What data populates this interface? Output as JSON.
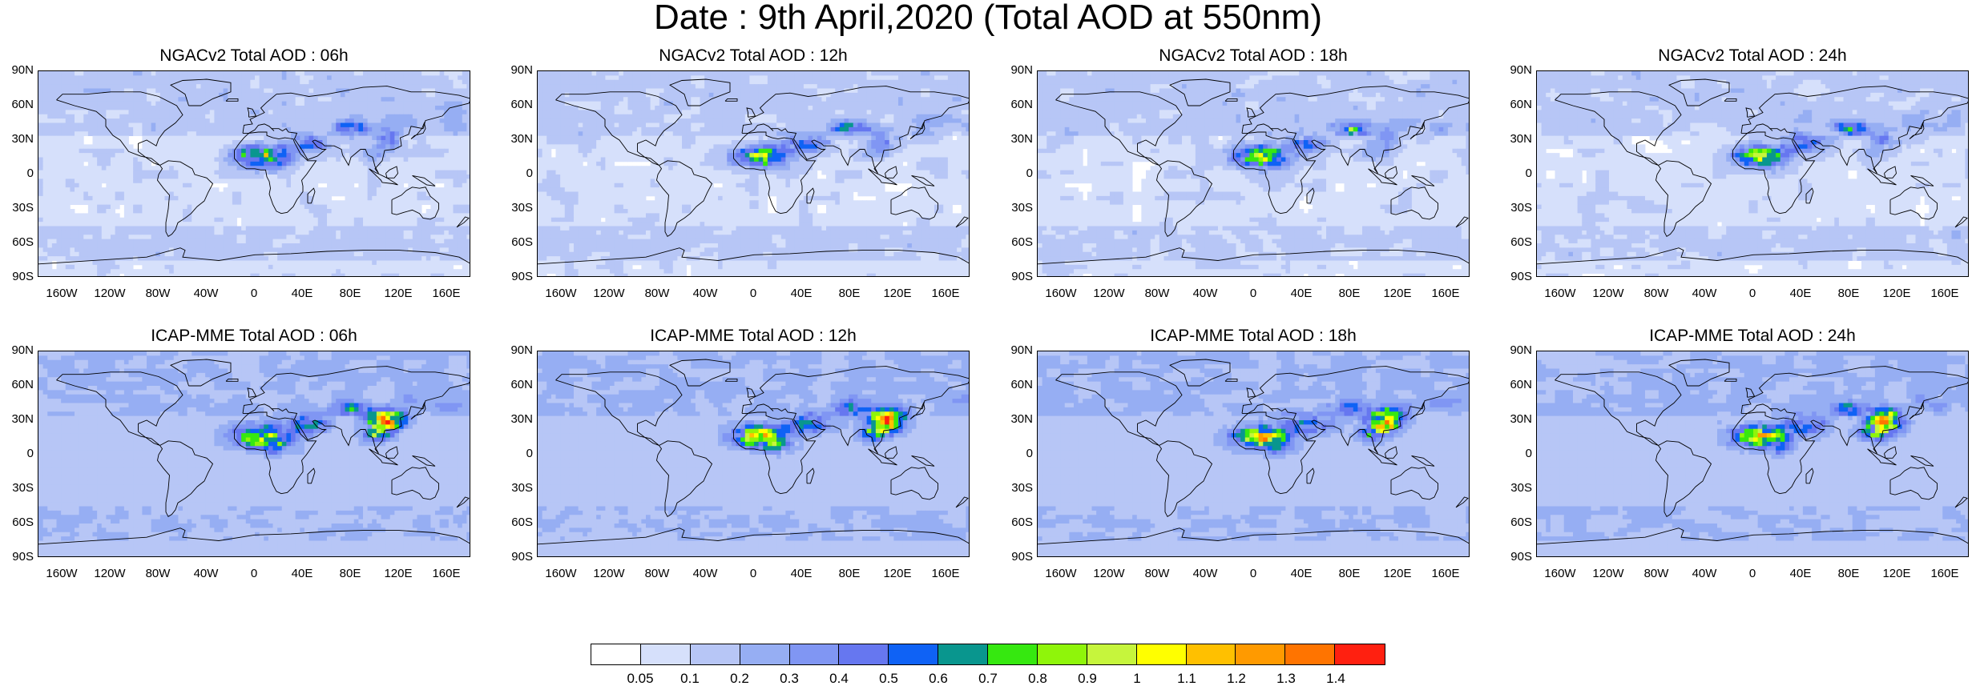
{
  "title": "Date : 9th April,2020 (Total AOD at 550nm)",
  "lat_ticks": [
    "90N",
    "60N",
    "30N",
    "0",
    "30S",
    "60S",
    "90S"
  ],
  "lon_ticks": [
    "160W",
    "120W",
    "80W",
    "40W",
    "0",
    "40E",
    "80E",
    "120E",
    "160E"
  ],
  "lon_values": [
    -160,
    -120,
    -80,
    -40,
    0,
    40,
    80,
    120,
    160
  ],
  "lat_values": [
    90,
    60,
    30,
    0,
    -30,
    -60,
    -90
  ],
  "panels": [
    {
      "title": "NGACv2 Total AOD : 06h",
      "model": "NGACv2",
      "hour": "06h"
    },
    {
      "title": "NGACv2 Total AOD : 12h",
      "model": "NGACv2",
      "hour": "12h"
    },
    {
      "title": "NGACv2 Total AOD : 18h",
      "model": "NGACv2",
      "hour": "18h"
    },
    {
      "title": "NGACv2 Total AOD : 24h",
      "model": "NGACv2",
      "hour": "24h"
    },
    {
      "title": "ICAP-MME Total AOD : 06h",
      "model": "ICAP-MME",
      "hour": "06h"
    },
    {
      "title": "ICAP-MME Total AOD : 12h",
      "model": "ICAP-MME",
      "hour": "12h"
    },
    {
      "title": "ICAP-MME Total AOD : 18h",
      "model": "ICAP-MME",
      "hour": "18h"
    },
    {
      "title": "ICAP-MME Total AOD : 24h",
      "model": "ICAP-MME",
      "hour": "24h"
    }
  ],
  "colorbar": {
    "labels": [
      "0.05",
      "0.1",
      "0.2",
      "0.3",
      "0.4",
      "0.5",
      "0.6",
      "0.7",
      "0.8",
      "0.9",
      "1",
      "1.1",
      "1.2",
      "1.3",
      "1.4"
    ],
    "colors": [
      "#ffffff",
      "#d6e0fb",
      "#b7c6f6",
      "#96aef3",
      "#8096f3",
      "#6677f0",
      "#0f62f5",
      "#09968e",
      "#36e810",
      "#8ff50a",
      "#c6f53c",
      "#ffff00",
      "#ffc000",
      "#ff9a00",
      "#ff7400",
      "#ff2010"
    ]
  }
}
